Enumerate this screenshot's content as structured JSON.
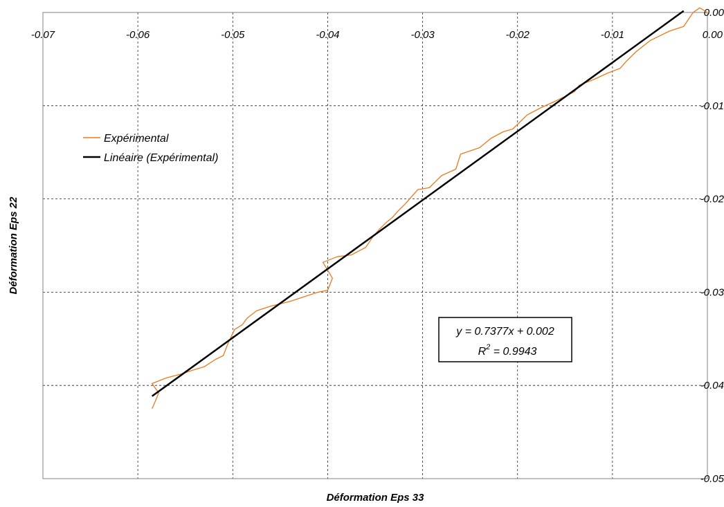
{
  "chart_data": {
    "type": "line",
    "xlabel": "Déformation Eps 33",
    "ylabel": "Déformation Eps 22",
    "xlim": [
      -0.07,
      0.0
    ],
    "ylim": [
      -0.05,
      0.0
    ],
    "x_ticks": [
      -0.07,
      -0.06,
      -0.05,
      -0.04,
      -0.03,
      -0.02,
      -0.01,
      0.0
    ],
    "x_tick_labels": [
      "-0.07",
      "-0.06",
      "-0.05",
      "-0.04",
      "-0.03",
      "-0.02",
      "-0.01",
      "0.00"
    ],
    "y_ticks": [
      0.0,
      -0.01,
      -0.02,
      -0.03,
      -0.04,
      -0.05
    ],
    "y_tick_labels": [
      "0.00",
      "-0.01",
      "-0.02",
      "-0.03",
      "-0.04",
      "-0.05"
    ],
    "x_axis_position": "top",
    "y_axis_position": "right",
    "grid": true,
    "legend_position": "top-left",
    "series": [
      {
        "name": "Expérimental",
        "color": "#f07818",
        "style": "thin-line",
        "x": [
          0.0,
          -0.0008,
          -0.0015,
          -0.0025,
          -0.004,
          -0.006,
          -0.0075,
          -0.0085,
          -0.0092,
          -0.0105,
          -0.012,
          -0.0135,
          -0.014,
          -0.016,
          -0.0175,
          -0.019,
          -0.0205,
          -0.0215,
          -0.0228,
          -0.024,
          -0.026,
          -0.0265,
          -0.028,
          -0.0293,
          -0.0305,
          -0.0312,
          -0.0318,
          -0.0325,
          -0.0332,
          -0.0338,
          -0.0345,
          -0.0352,
          -0.036,
          -0.0375,
          -0.039,
          -0.0405,
          -0.0395,
          -0.04,
          -0.041,
          -0.0425,
          -0.044,
          -0.046,
          -0.0475,
          -0.0485,
          -0.049,
          -0.0498,
          -0.0505,
          -0.051,
          -0.0518,
          -0.053,
          -0.054,
          -0.0555,
          -0.057,
          -0.0585,
          -0.0578,
          -0.0582,
          -0.0585
        ],
        "y": [
          0.0,
          0.0005,
          0.0,
          -0.0015,
          -0.002,
          -0.003,
          -0.0042,
          -0.0052,
          -0.006,
          -0.0065,
          -0.0072,
          -0.0078,
          -0.0085,
          -0.0095,
          -0.0102,
          -0.011,
          -0.0125,
          -0.0128,
          -0.0135,
          -0.0145,
          -0.0152,
          -0.0168,
          -0.0175,
          -0.0188,
          -0.019,
          -0.0198,
          -0.0205,
          -0.0212,
          -0.022,
          -0.0225,
          -0.0232,
          -0.024,
          -0.0252,
          -0.026,
          -0.0262,
          -0.0268,
          -0.0285,
          -0.0298,
          -0.03,
          -0.0305,
          -0.031,
          -0.0315,
          -0.032,
          -0.0328,
          -0.0335,
          -0.034,
          -0.0355,
          -0.0368,
          -0.0372,
          -0.038,
          -0.0383,
          -0.0388,
          -0.0392,
          -0.0398,
          -0.0408,
          -0.0418,
          -0.0425
        ]
      },
      {
        "name": "Linéaire (Expérimental)",
        "color": "#000000",
        "style": "thick-line",
        "x": [
          -0.0585,
          -0.0025
        ],
        "y": [
          -0.04116,
          0.00016
        ]
      }
    ],
    "trendline": {
      "equation": "y = 0.7377x + 0.002",
      "r_squared_prefix": "R",
      "r_squared_superscript": "2",
      "r_squared_value": " = 0.9943"
    }
  }
}
